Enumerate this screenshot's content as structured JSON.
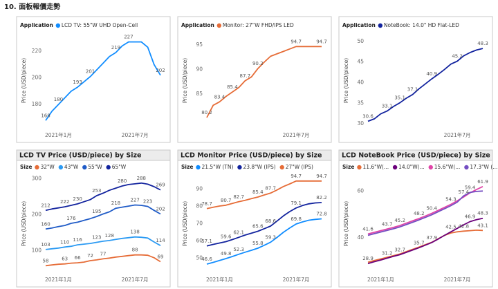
{
  "page_title": "10. 面板報價走勢",
  "chart_data": [
    {
      "type": "line",
      "legend_title": "Application",
      "y_label": "Price (USD/piece)",
      "categories": [
        null,
        null,
        "2021年1月",
        null,
        null,
        null,
        null,
        null,
        null,
        null,
        null,
        null,
        null,
        null,
        "2021年7月",
        null,
        null,
        null,
        null
      ],
      "ylim": [
        164,
        232
      ],
      "yticks": [
        180,
        200,
        220
      ],
      "series": [
        {
          "name": "LCD TV: 55\"W UHD Open-Cell",
          "color": "#118dff",
          "values": [
            168,
            175,
            180,
            185,
            190,
            193,
            197,
            201,
            206,
            211,
            216,
            219,
            224,
            227,
            227,
            227,
            223,
            210,
            202
          ],
          "value_labels": [
            "168",
            null,
            "180",
            null,
            null,
            "193",
            null,
            "201",
            null,
            null,
            null,
            "219",
            null,
            "227",
            null,
            null,
            null,
            null,
            "202"
          ]
        }
      ]
    },
    {
      "type": "line",
      "legend_title": "Application",
      "y_label": "Price (USD/piece)",
      "categories": [
        null,
        null,
        null,
        null,
        null,
        null,
        null,
        null,
        null,
        null,
        null,
        null,
        null,
        null,
        "2021年7月",
        null,
        null,
        null,
        null
      ],
      "ylim": [
        78.5,
        97
      ],
      "yticks": [
        85,
        90,
        95
      ],
      "series": [
        {
          "name": "Monitor: 27\"W FHD/IPS LED",
          "color": "#e66c37",
          "values": [
            80.2,
            82.7,
            83.4,
            84.5,
            85.4,
            86.3,
            87.7,
            88.5,
            90.2,
            91.5,
            92.7,
            93.2,
            93.7,
            94.2,
            94.7,
            94.7,
            94.7,
            94.7,
            94.7
          ],
          "value_labels": [
            "80.2",
            null,
            "83.4",
            null,
            "85.4",
            null,
            "87.7",
            null,
            "90.2",
            null,
            null,
            null,
            null,
            null,
            "94.7",
            null,
            null,
            null,
            "94.7"
          ]
        }
      ]
    },
    {
      "type": "line",
      "legend_title": "Application",
      "y_label": "Price (USD/piece)",
      "categories": [
        null,
        null,
        null,
        null,
        null,
        null,
        null,
        null,
        null,
        null,
        null,
        null,
        null,
        null,
        "2021年7月",
        null,
        null,
        null,
        null
      ],
      "ylim": [
        29.5,
        51.5
      ],
      "yticks": [
        30,
        35,
        40,
        45,
        50
      ],
      "series": [
        {
          "name": "NoteBook: 14.0\" HD Flat-LED",
          "color": "#12239e",
          "values": [
            30.6,
            31.2,
            32.4,
            33.1,
            34.2,
            35.1,
            36.2,
            37.1,
            38.5,
            39.7,
            40.9,
            42.0,
            43.2,
            44.5,
            45.2,
            46.5,
            47.3,
            47.9,
            48.3
          ],
          "value_labels": [
            "30.6",
            null,
            null,
            "33.1",
            null,
            "35.1",
            null,
            "37.1",
            null,
            null,
            "40.9",
            null,
            null,
            null,
            "45.2",
            null,
            null,
            null,
            "48.3"
          ]
        }
      ]
    },
    {
      "type": "line",
      "title": "LCD TV Price (USD/piece) by Size",
      "legend_title": "Size",
      "y_label": "Price (USD/piece)",
      "categories": [
        null,
        null,
        "2021年1月",
        null,
        null,
        null,
        null,
        null,
        null,
        null,
        null,
        null,
        null,
        null,
        "2021年7月",
        null,
        null,
        null,
        null
      ],
      "ylim": [
        45,
        305
      ],
      "yticks": [
        100,
        200,
        300
      ],
      "series": [
        {
          "name": "32\"W",
          "color": "#e66c37",
          "values": [
            58,
            60,
            62,
            63,
            65,
            66,
            68,
            72,
            74,
            77,
            79,
            82,
            84,
            86,
            88,
            88,
            87,
            80,
            69
          ],
          "value_labels": [
            "58",
            null,
            null,
            "63",
            null,
            "66",
            null,
            "72",
            null,
            "77",
            null,
            null,
            null,
            null,
            "88",
            null,
            null,
            null,
            "69"
          ]
        },
        {
          "name": "43\"W",
          "color": "#2b9af3",
          "values": [
            103,
            105,
            107,
            110,
            112,
            116,
            118,
            120,
            123,
            126,
            128,
            131,
            134,
            136,
            138,
            137,
            135,
            124,
            114
          ],
          "value_labels": [
            "103",
            null,
            null,
            "110",
            null,
            "116",
            null,
            null,
            "123",
            null,
            "128",
            null,
            null,
            null,
            "138",
            null,
            null,
            null,
            "114"
          ]
        },
        {
          "name": "55\"W",
          "color": "#1f5bc7",
          "values": [
            160,
            163,
            167,
            170,
            176,
            179,
            184,
            189,
            195,
            202,
            208,
            218,
            221,
            224,
            227,
            226,
            223,
            212,
            202
          ],
          "value_labels": [
            "160",
            null,
            null,
            null,
            "176",
            null,
            null,
            null,
            "195",
            null,
            null,
            "218",
            null,
            null,
            "227",
            null,
            "223",
            null,
            "202"
          ]
        },
        {
          "name": "65\"W",
          "color": "#12239e",
          "values": [
            212,
            216,
            219,
            222,
            226,
            230,
            236,
            242,
            253,
            260,
            268,
            274,
            280,
            284,
            286,
            288,
            285,
            278,
            269
          ],
          "value_labels": [
            "212",
            null,
            null,
            "222",
            null,
            "230",
            null,
            null,
            "253",
            null,
            null,
            null,
            "280",
            null,
            null,
            "288",
            null,
            null,
            "269"
          ]
        }
      ]
    },
    {
      "type": "line",
      "title": "LCD Monitor Price (USD/piece) by Size",
      "legend_title": "Size",
      "y_label": "Price (USD/piece)",
      "categories": [
        null,
        null,
        "2021年1月",
        null,
        null,
        null,
        null,
        null,
        null,
        null,
        null,
        null,
        null,
        null,
        "2021年7月",
        null,
        null,
        null,
        null
      ],
      "ylim": [
        43,
        97
      ],
      "yticks": [
        50,
        60,
        70,
        80,
        90
      ],
      "series": [
        {
          "name": "21.5\"W (TN)",
          "color": "#118dff",
          "values": [
            46.6,
            47.6,
            48.7,
            49.8,
            51.0,
            52.3,
            53.5,
            54.6,
            55.8,
            57.5,
            59.3,
            62.0,
            65.0,
            67.5,
            69.8,
            71.0,
            72.0,
            72.5,
            72.8
          ],
          "value_labels": [
            "46.6",
            null,
            null,
            "49.8",
            null,
            "52.3",
            null,
            null,
            "55.8",
            null,
            "59.3",
            null,
            null,
            null,
            "69.8",
            null,
            null,
            null,
            "72.8"
          ]
        },
        {
          "name": "23.8\"W (IPS)",
          "color": "#12239e",
          "values": [
            57.1,
            58.0,
            58.8,
            59.6,
            60.8,
            62.1,
            63.4,
            64.5,
            65.6,
            67.1,
            68.6,
            71.5,
            74.5,
            77.0,
            79.1,
            80.5,
            81.5,
            82.0,
            82.2
          ],
          "value_labels": [
            "57.1",
            null,
            null,
            "59.6",
            null,
            "62.1",
            null,
            null,
            "65.6",
            null,
            "68.6",
            null,
            null,
            null,
            "79.1",
            null,
            null,
            null,
            "82.2"
          ]
        },
        {
          "name": "27\"W (IPS)",
          "color": "#e66c37",
          "values": [
            78.7,
            79.5,
            80.2,
            80.7,
            81.7,
            82.7,
            83.5,
            84.5,
            85.4,
            86.6,
            87.7,
            89.5,
            91.5,
            93.0,
            94.7,
            94.7,
            94.7,
            94.7,
            94.7
          ],
          "value_labels": [
            "78.7",
            null,
            null,
            "80.7",
            null,
            "82.7",
            null,
            null,
            "85.4",
            null,
            "87.7",
            null,
            null,
            null,
            "94.7",
            null,
            null,
            null,
            "94.7"
          ]
        }
      ]
    },
    {
      "type": "line",
      "title": "LCD NoteBook Price (USD/piece) by Size",
      "legend_title": "Size",
      "y_label": "Price (USD/piece)",
      "categories": [
        null,
        null,
        "2021年1月",
        null,
        null,
        null,
        null,
        null,
        null,
        null,
        null,
        null,
        null,
        null,
        "2021年7月",
        null,
        null,
        null,
        null
      ],
      "ylim": [
        26,
        66
      ],
      "yticks": [
        40,
        60
      ],
      "series": [
        {
          "name": "11.6\"W(...",
          "color": "#e66c37",
          "values": [
            29.5,
            30.2,
            30.9,
            31.6,
            32.3,
            33.0,
            34.0,
            35.0,
            36.0,
            37.0,
            38.0,
            39.5,
            41.0,
            42.0,
            42.5,
            42.8,
            43.0,
            43.2,
            43.1
          ],
          "value_labels": [
            null,
            null,
            null,
            null,
            null,
            null,
            null,
            null,
            null,
            null,
            null,
            null,
            null,
            null,
            null,
            "42.8",
            null,
            null,
            "43.1"
          ]
        },
        {
          "name": "14.0\"W(...",
          "color": "#6b007b",
          "values": [
            28.9,
            29.7,
            30.4,
            31.2,
            32.0,
            32.7,
            33.7,
            34.7,
            35.7,
            36.8,
            37.9,
            39.4,
            41.0,
            42.5,
            44.0,
            45.5,
            46.9,
            47.7,
            48.3
          ],
          "value_labels": [
            "28.9",
            null,
            null,
            "31.2",
            null,
            "32.7",
            null,
            null,
            "35.7",
            null,
            "37.9",
            null,
            null,
            "42.5",
            null,
            null,
            "46.9",
            null,
            "48.3"
          ]
        },
        {
          "name": "15.6\"W(...",
          "color": "#e044a7",
          "values": [
            41.6,
            42.3,
            43.0,
            43.7,
            44.4,
            45.2,
            46.2,
            47.2,
            48.2,
            49.3,
            50.4,
            51.7,
            53.0,
            54.3,
            55.8,
            57.4,
            59.2,
            60.6,
            61.9
          ],
          "value_labels": [
            "41.6",
            null,
            null,
            "43.7",
            null,
            "45.2",
            null,
            null,
            "48.2",
            null,
            "50.4",
            null,
            null,
            "54.3",
            null,
            "57.4",
            null,
            null,
            "61.9"
          ]
        },
        {
          "name": "17.3\"W (...",
          "color": "#744ec2",
          "values": [
            41.0,
            41.7,
            42.4,
            43.1,
            43.8,
            44.6,
            45.6,
            46.6,
            47.6,
            48.7,
            49.8,
            51.1,
            52.4,
            53.7,
            55.2,
            57.9,
            59.4,
            59.8,
            60.0
          ],
          "value_labels": [
            null,
            null,
            null,
            null,
            null,
            null,
            null,
            null,
            null,
            null,
            null,
            null,
            null,
            null,
            null,
            null,
            "59.4",
            null,
            null
          ]
        }
      ]
    }
  ]
}
